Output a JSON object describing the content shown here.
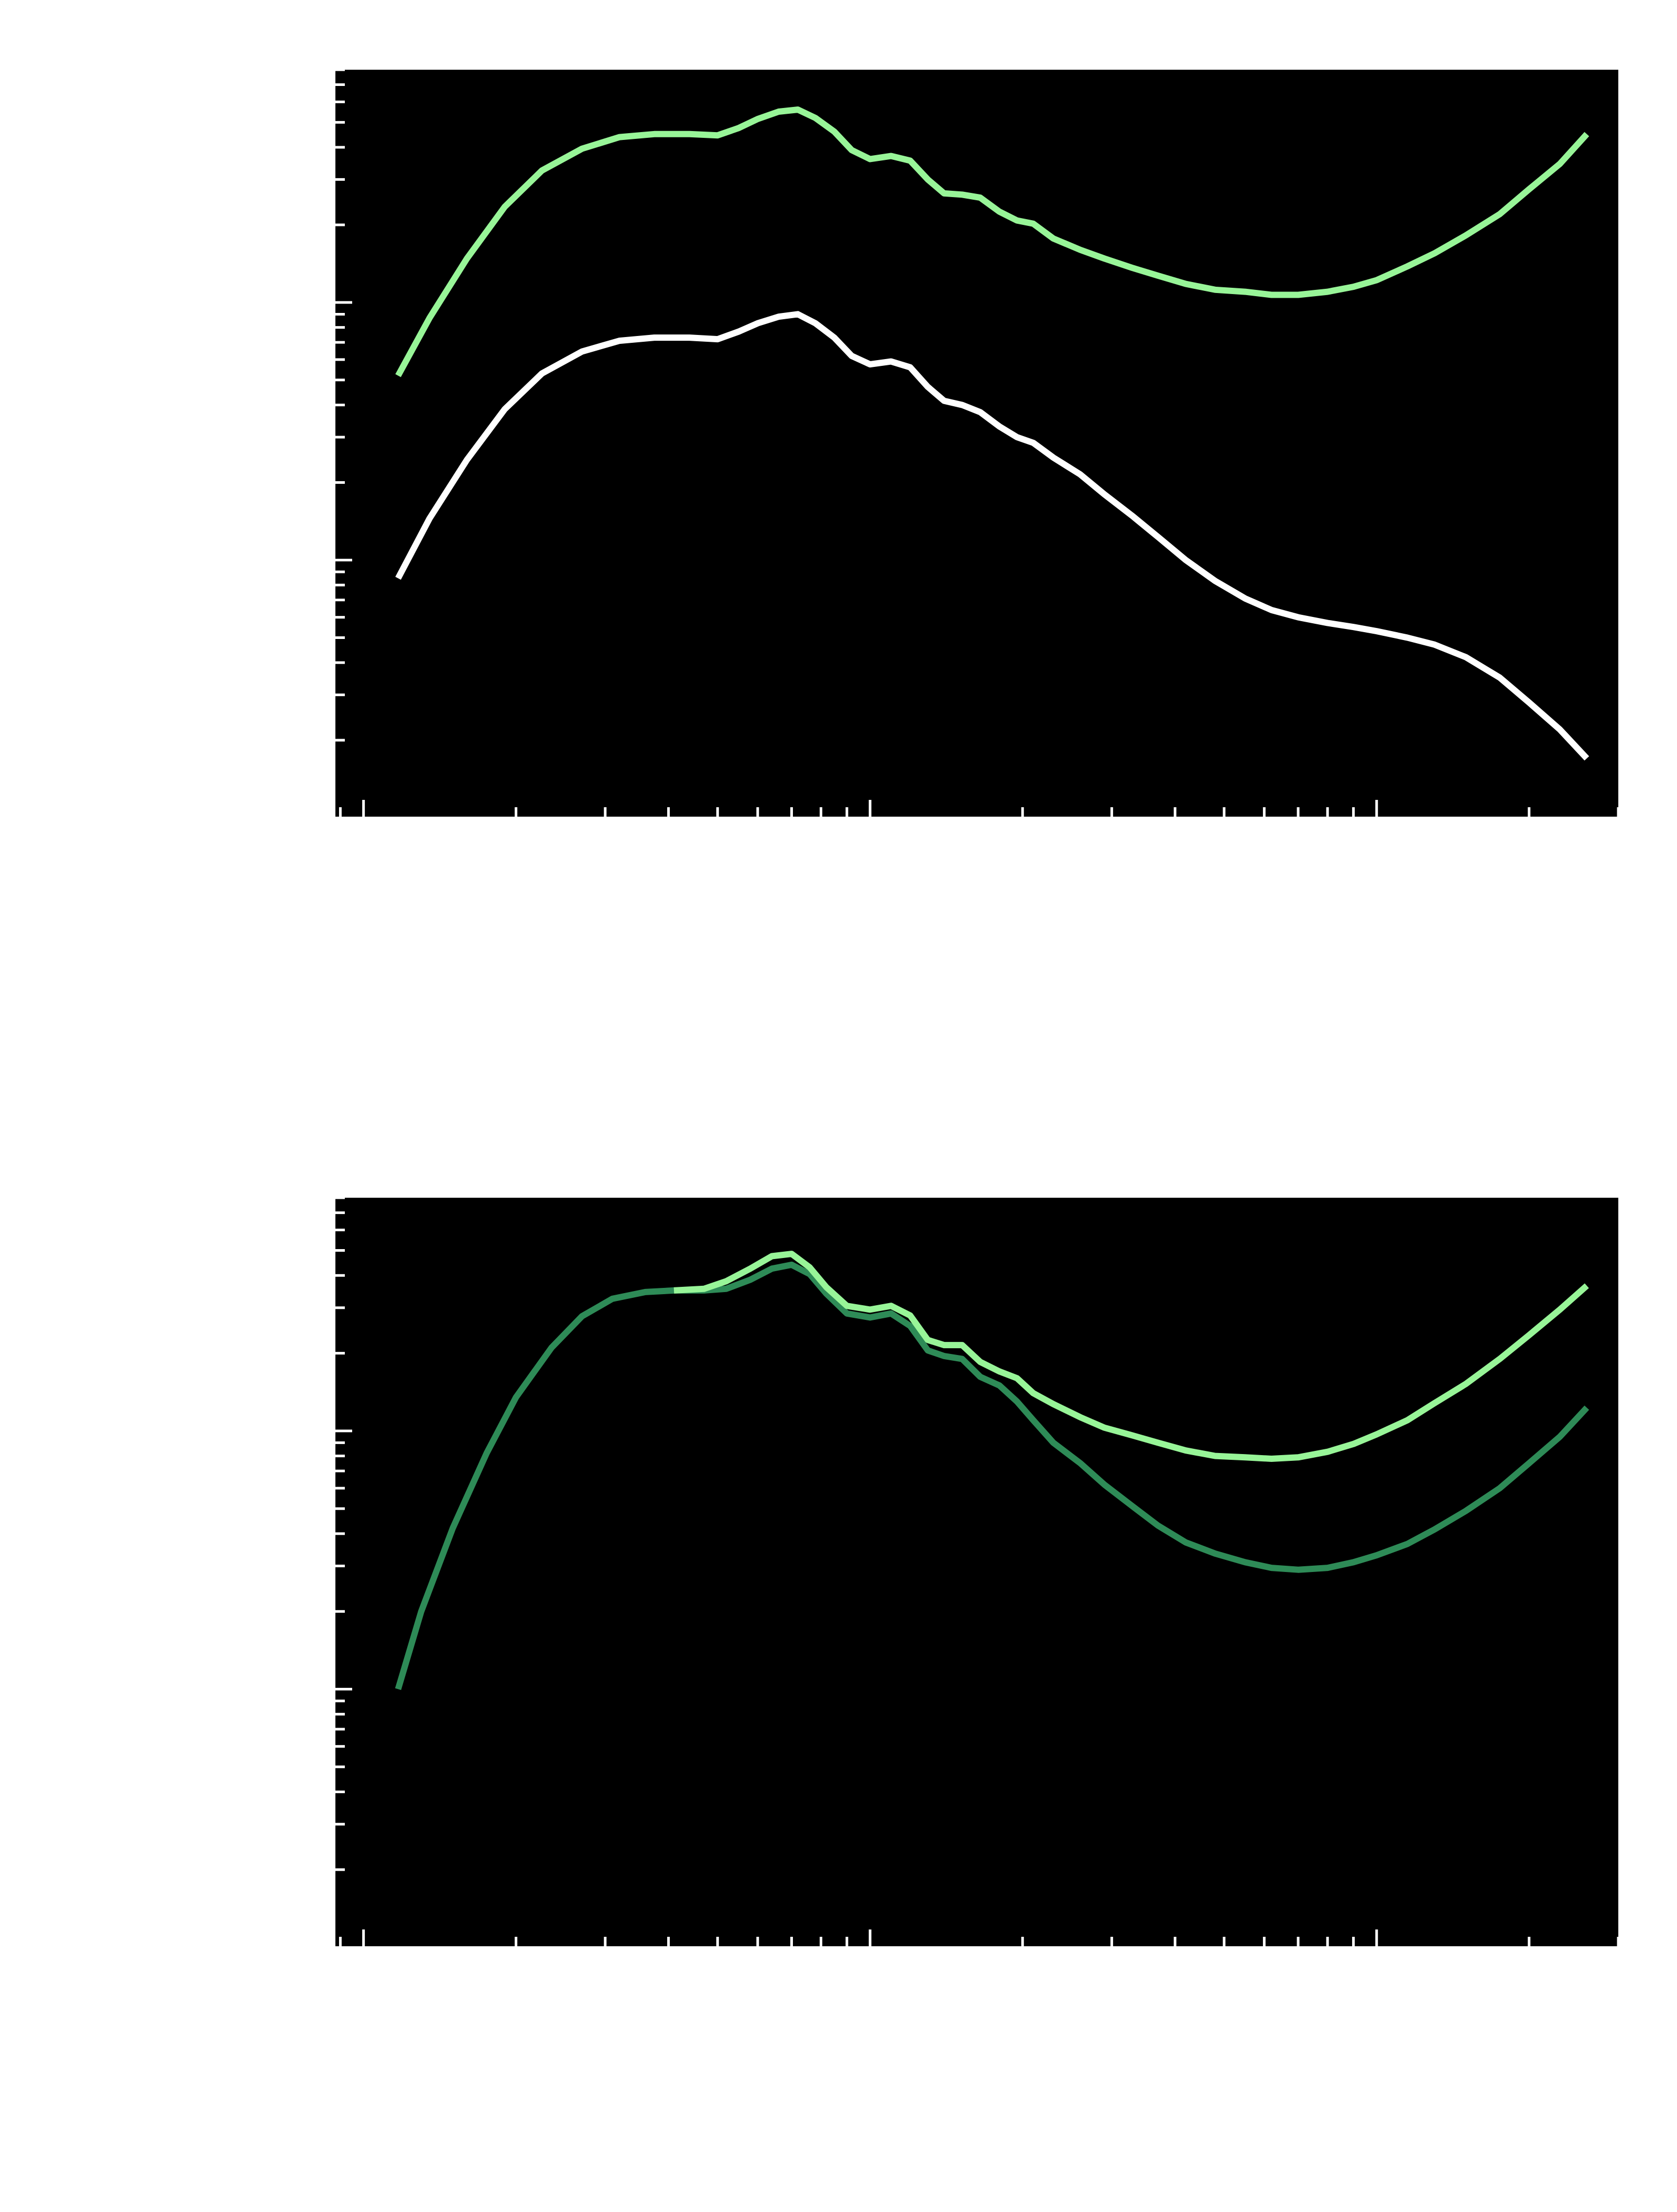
{
  "figure": {
    "background": "#ffffff",
    "axes_background": "#000000",
    "tick_color": "#ffffff"
  },
  "chart_data": [
    {
      "type": "line",
      "title": "",
      "xlabel": "",
      "ylabel": "",
      "xscale": "log",
      "yscale": "log",
      "xlim": [
        0.0088,
        3.0
      ],
      "ylim": [
        0.0101,
        8.0
      ],
      "grid": false,
      "legend": "none",
      "series": [
        {
          "color": "#98f598",
          "x": [
            0.0117,
            0.0135,
            0.016,
            0.019,
            0.0225,
            0.027,
            0.032,
            0.0375,
            0.044,
            0.05,
            0.055,
            0.06,
            0.066,
            0.072,
            0.078,
            0.085,
            0.092,
            0.1,
            0.11,
            0.12,
            0.13,
            0.14,
            0.152,
            0.165,
            0.18,
            0.195,
            0.21,
            0.23,
            0.26,
            0.29,
            0.33,
            0.37,
            0.42,
            0.48,
            0.55,
            0.62,
            0.7,
            0.8,
            0.9,
            1.0,
            1.15,
            1.3,
            1.5,
            1.75,
            2.0,
            2.3,
            2.6
          ],
          "y": [
            0.52,
            0.87,
            1.48,
            2.35,
            3.25,
            3.95,
            4.38,
            4.5,
            4.5,
            4.45,
            4.75,
            5.15,
            5.5,
            5.6,
            5.2,
            4.6,
            3.9,
            3.6,
            3.7,
            3.55,
            3.0,
            2.65,
            2.62,
            2.55,
            2.25,
            2.08,
            2.02,
            1.77,
            1.6,
            1.48,
            1.36,
            1.27,
            1.18,
            1.12,
            1.1,
            1.07,
            1.07,
            1.1,
            1.15,
            1.22,
            1.38,
            1.55,
            1.82,
            2.2,
            2.75,
            3.45,
            4.5
          ]
        },
        {
          "color": "#ffffff",
          "x": [
            0.0117,
            0.0135,
            0.016,
            0.019,
            0.0225,
            0.027,
            0.032,
            0.0375,
            0.044,
            0.05,
            0.055,
            0.06,
            0.066,
            0.072,
            0.078,
            0.085,
            0.092,
            0.1,
            0.11,
            0.12,
            0.13,
            0.14,
            0.152,
            0.165,
            0.18,
            0.195,
            0.21,
            0.23,
            0.26,
            0.29,
            0.33,
            0.37,
            0.42,
            0.48,
            0.55,
            0.62,
            0.7,
            0.8,
            0.9,
            1.0,
            1.15,
            1.3,
            1.5,
            1.75,
            2.0,
            2.3,
            2.6
          ],
          "y": [
            0.085,
            0.145,
            0.245,
            0.385,
            0.53,
            0.645,
            0.71,
            0.73,
            0.73,
            0.72,
            0.77,
            0.83,
            0.88,
            0.9,
            0.83,
            0.73,
            0.62,
            0.575,
            0.59,
            0.56,
            0.47,
            0.415,
            0.4,
            0.375,
            0.33,
            0.3,
            0.285,
            0.25,
            0.215,
            0.18,
            0.148,
            0.123,
            0.1,
            0.083,
            0.071,
            0.064,
            0.06,
            0.057,
            0.055,
            0.053,
            0.05,
            0.047,
            0.042,
            0.035,
            0.028,
            0.022,
            0.017
          ]
        }
      ]
    },
    {
      "type": "line",
      "title": "",
      "xlabel": "",
      "ylabel": "",
      "xscale": "log",
      "yscale": "log",
      "xlim": [
        0.0088,
        3.0
      ],
      "ylim": [
        0.0101,
        8.0
      ],
      "grid": false,
      "legend": "none",
      "series": [
        {
          "color": "#2e8b57",
          "x": [
            0.0117,
            0.013,
            0.015,
            0.0175,
            0.02,
            0.0235,
            0.027,
            0.031,
            0.036,
            0.041,
            0.047,
            0.052,
            0.058,
            0.064,
            0.07,
            0.076,
            0.082,
            0.09,
            0.1,
            0.11,
            0.12,
            0.13,
            0.14,
            0.152,
            0.165,
            0.18,
            0.195,
            0.21,
            0.23,
            0.26,
            0.29,
            0.33,
            0.37,
            0.42,
            0.48,
            0.55,
            0.62,
            0.7,
            0.8,
            0.9,
            1.0,
            1.15,
            1.3,
            1.5,
            1.75,
            2.0,
            2.3,
            2.6
          ],
          "y": [
            0.1,
            0.2,
            0.42,
            0.82,
            1.35,
            2.1,
            2.78,
            3.25,
            3.45,
            3.5,
            3.5,
            3.55,
            3.85,
            4.25,
            4.4,
            4.05,
            3.4,
            2.85,
            2.75,
            2.85,
            2.55,
            2.05,
            1.95,
            1.9,
            1.62,
            1.5,
            1.3,
            1.1,
            0.9,
            0.75,
            0.62,
            0.51,
            0.43,
            0.37,
            0.335,
            0.31,
            0.295,
            0.29,
            0.295,
            0.31,
            0.33,
            0.365,
            0.415,
            0.49,
            0.6,
            0.75,
            0.95,
            1.23
          ]
        },
        {
          "color": "#98f598",
          "x": [
            0.041,
            0.047,
            0.052,
            0.058,
            0.064,
            0.07,
            0.076,
            0.082,
            0.09,
            0.1,
            0.11,
            0.12,
            0.13,
            0.14,
            0.152,
            0.165,
            0.18,
            0.195,
            0.21,
            0.23,
            0.26,
            0.29,
            0.33,
            0.37,
            0.42,
            0.48,
            0.55,
            0.62,
            0.7,
            0.8,
            0.9,
            1.0,
            1.15,
            1.3,
            1.5,
            1.75,
            2.0,
            2.3,
            2.6
          ],
          "y": [
            3.5,
            3.55,
            3.8,
            4.25,
            4.75,
            4.85,
            4.3,
            3.6,
            3.05,
            2.95,
            3.05,
            2.8,
            2.25,
            2.15,
            2.15,
            1.85,
            1.7,
            1.6,
            1.4,
            1.27,
            1.13,
            1.03,
            0.96,
            0.9,
            0.84,
            0.8,
            0.79,
            0.78,
            0.79,
            0.83,
            0.89,
            0.97,
            1.1,
            1.28,
            1.52,
            1.9,
            2.35,
            2.95,
            3.65
          ]
        }
      ]
    }
  ]
}
